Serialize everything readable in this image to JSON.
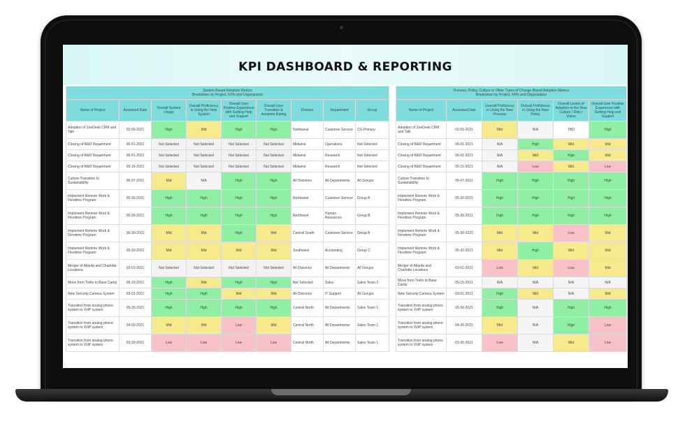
{
  "title": "KPI DASHBOARD & REPORTING",
  "colors": {
    "high": "#8ff0a4",
    "mid": "#f6ea8c",
    "low": "#f8c2c8",
    "header": "#7fdcdc"
  },
  "system_table": {
    "super_header": "System Based Adoption Metrics\nBreakdown by Project, KPIs and Organization",
    "columns": [
      "Name of Project",
      "Assessed Date",
      "Overall System Usage",
      "Overall Proficiency in Using the New System",
      "Overall User Positive Experience with Getting Help and Support",
      "Overall User Transition & Adoption Rating",
      "Division",
      "Department",
      "Group"
    ],
    "rows": [
      [
        "Adoption of ZenDesk CRM and Talk",
        "02-05-2021",
        "High",
        "Mid",
        "High",
        "High",
        "Northwest",
        "Customer Service",
        "CS-Primary"
      ],
      [
        "Closing of R&D Department",
        "06-01-2021",
        "Not Selected",
        "Not Selected",
        "Not Selected",
        "Not Selected",
        "Midwest",
        "Operations",
        "Not Selected"
      ],
      [
        "Closing of R&D Department",
        "06-01-2021",
        "Not Selected",
        "Not Selected",
        "Not Selected",
        "Not Selected",
        "Midwest",
        "Research",
        "Not Selected"
      ],
      [
        "Closing of R&D Department",
        "05-15-2021",
        "Not Selected",
        "Not Selected",
        "Not Selected",
        "Not Selected",
        "Midwest",
        "Research",
        "Not Selected"
      ],
      [
        "Culture Transition to Sustainability",
        "06-07-2021",
        "Mid",
        "N/A",
        "High",
        "High",
        "All Divisions",
        "All Departments",
        "All Groups"
      ],
      [
        "Implement Remote Work & Flexitime Program",
        "05-30-2021",
        "High",
        "High",
        "High",
        "High",
        "Northwest",
        "Customer Service",
        "Group A"
      ],
      [
        "Implement Remote Work & Flexitime Program",
        "05-30-2021",
        "High",
        "High",
        "High",
        "High",
        "Northwest",
        "Human Resources",
        "Group B"
      ],
      [
        "Implement Remote Work & Flexitime Program",
        "05-30-2021",
        "Mid",
        "Mid",
        "High",
        "Mid",
        "Central South",
        "Customer Service",
        "Group A"
      ],
      [
        "Implement Remote Work & Flexitime Program",
        "05-30-2021",
        "Mid",
        "Mid",
        "Mid",
        "Mid",
        "Southwest",
        "Accounting",
        "Group C"
      ],
      [
        "Merger of Atlanta and Charlotte Locations",
        "03-01-2021",
        "Not Selected",
        "Not Selected",
        "Not Selected",
        "Not Selected",
        "All Divisions",
        "All Departments",
        "All Groups"
      ],
      [
        "Move from Trello to Base Camp",
        "05-15-2021",
        "High",
        "Mid",
        "High",
        "High",
        "Not Selected",
        "Sales",
        "Sales Team 2"
      ],
      [
        "New Security Camera System",
        "03-01-2021",
        "High",
        "High",
        "Mid",
        "Mid",
        "All Divisions",
        "IT Support",
        "All Groups"
      ],
      [
        "Transition from analog phone system to VoIP system",
        "05-30-2021",
        "High",
        "High",
        "High",
        "High",
        "Central North",
        "All Departments",
        "Sales Team 1"
      ],
      [
        "Transition from analog phone system to VoIP system",
        "04-30-2021",
        "Mid",
        "Mid",
        "Low",
        "Mid",
        "Central North",
        "All Departments",
        "Sales Team 1"
      ],
      [
        "Transition from analog phone system to VoIP system",
        "03-30-2021",
        "Low",
        "Low",
        "Low",
        "Low",
        "Central North",
        "All Departments",
        "Sales Team 1"
      ]
    ]
  },
  "process_table": {
    "super_header": "Process, Policy, Culture or Other Types of Change Based Adoption Metrics\nBreakdown by Project, KPIs and Organization",
    "columns": [
      "Name of Project",
      "Assessed Date",
      "Overall Proficiency in Using the New Process",
      "Overall Proficiency in Using the New Policy",
      "Overall Levels of Adoption to the New Culture / Role / Vision",
      "Overall User Positive Experience with Getting Help and Support"
    ],
    "rows": [
      [
        "Adoption of ZenDesk CRM and Talk",
        "02-05-2021",
        "Mid",
        "N/A",
        "TBD",
        "High"
      ],
      [
        "Closing of R&D Department",
        "06-01-2021",
        "N/A",
        "High",
        "Mid",
        "Mid"
      ],
      [
        "Closing of R&D Department",
        "06-01-2021",
        "N/A",
        "Mid",
        "High",
        "Mid"
      ],
      [
        "Closing of R&D Department",
        "05-15-2021",
        "N/A",
        "Low",
        "Mid",
        "Low"
      ],
      [
        "Culture Transition to Sustainability",
        "06-07-2021",
        "High",
        "High",
        "High",
        "High"
      ],
      [
        "Implement Remote Work & Flexitime Program",
        "05-30-2021",
        "High",
        "High",
        "High",
        "High"
      ],
      [
        "Implement Remote Work & Flexitime Program",
        "05-30-2021",
        "High",
        "High",
        "High",
        "High"
      ],
      [
        "Implement Remote Work & Flexitime Program",
        "05-30-2021",
        "Mid",
        "Mid",
        "Low",
        "Mid"
      ],
      [
        "Implement Remote Work & Flexitime Program",
        "05-30-2021",
        "Mid",
        "High",
        "Mid",
        "Mid"
      ],
      [
        "Merger of Atlanta and Charlotte Locations",
        "03-01-2021",
        "Low",
        "Mid",
        "Low",
        "Mid"
      ],
      [
        "Move from Trello to Base Camp",
        "05-15-2021",
        "N/A",
        "N/A",
        "N/A",
        "N/A"
      ],
      [
        "New Security Camera System",
        "03-01-2021",
        "High",
        "Mid",
        "N/A",
        "Mid"
      ],
      [
        "Transition from analog phone system to VoIP system",
        "05-30-2021",
        "High",
        "N/A",
        "High",
        "High"
      ],
      [
        "Transition from analog phone system to VoIP system",
        "04-30-2021",
        "Mid",
        "N/A",
        "High",
        "Low"
      ],
      [
        "Transition from analog phone system to VoIP system",
        "03-30-2021",
        "Low",
        "N/A",
        "Mid",
        "Low"
      ]
    ]
  }
}
